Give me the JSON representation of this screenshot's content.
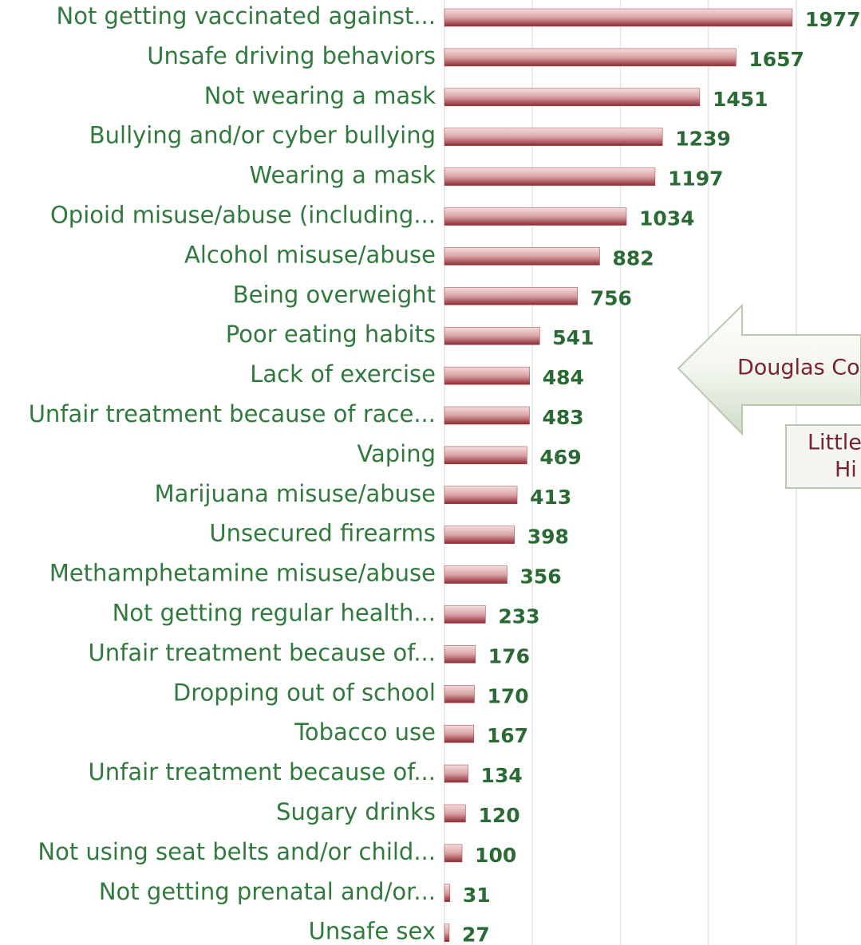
{
  "chart_data": {
    "type": "barh",
    "categories": [
      "Not getting vaccinated against...",
      "Unsafe driving behaviors",
      "Not wearing a mask",
      "Bullying and/or cyber bullying",
      "Wearing a mask",
      "Opioid misuse/abuse (including...",
      "Alcohol misuse/abuse",
      "Being overweight",
      "Poor eating habits",
      "Lack of exercise",
      "Unfair treatment because of race...",
      "Vaping",
      "Marijuana misuse/abuse",
      "Unsecured firearms",
      "Methamphetamine misuse/abuse",
      "Not getting regular health...",
      "Unfair treatment because of...",
      "Dropping out of school",
      "Tobacco use",
      "Unfair treatment because of...",
      "Sugary drinks",
      "Not using seat belts and/or child...",
      "Not getting prenatal and/or...",
      "Unsafe sex"
    ],
    "values": [
      1977,
      1657,
      1451,
      1239,
      1197,
      1034,
      882,
      756,
      541,
      484,
      483,
      469,
      413,
      398,
      356,
      233,
      176,
      170,
      167,
      134,
      120,
      100,
      31,
      27
    ],
    "color": "#a33a42",
    "xlim": [
      0,
      2000
    ],
    "xticks": [
      0,
      500,
      1000,
      1500,
      2000
    ],
    "grid": true,
    "annotations": [
      "Douglas Co",
      "Little",
      "Hi"
    ]
  }
}
